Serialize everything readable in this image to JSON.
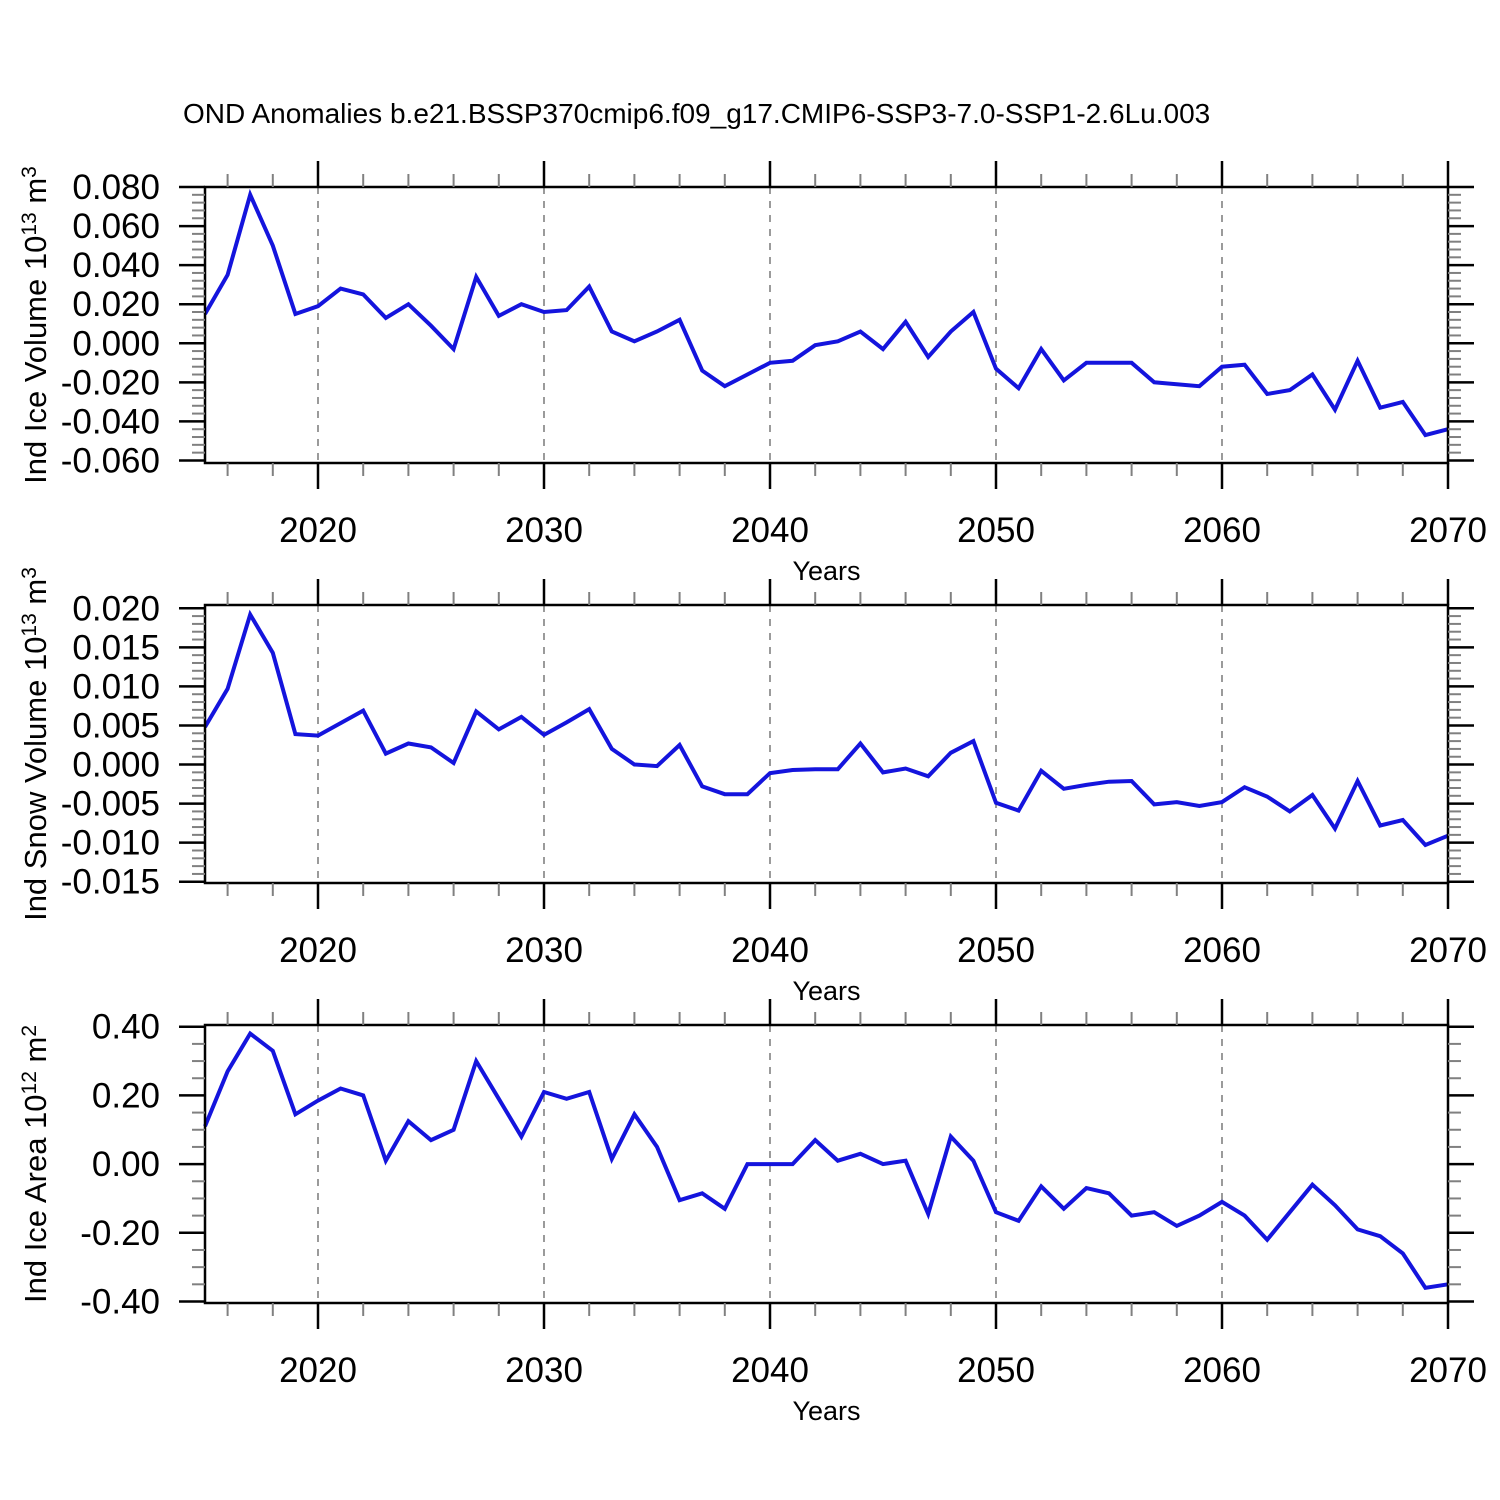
{
  "title": "OND Anomalies b.e21.BSSP370cmip6.f09_g17.CMIP6-SSP3-7.0-SSP1-2.6Lu.003",
  "line_color": "#1414dd",
  "grid_color": "#909090",
  "minor_tick_color": "#808080",
  "axis_color": "#000000",
  "chart_data": [
    {
      "type": "line",
      "name": "ice-volume",
      "ylabel": "Ind Ice Volume 10^13 m^3",
      "ylabel_parts": [
        "Ind Ice Volume 10",
        "13",
        " m",
        "3"
      ],
      "xlabel": "Years",
      "x_start": 2015,
      "x_end": 2070,
      "xticks": [
        2020,
        2030,
        2040,
        2050,
        2060,
        2070
      ],
      "x_minor_step": 2,
      "grid_decades": [
        2020,
        2030,
        2040,
        2050,
        2060
      ],
      "ytick_labels": [
        "0.080",
        "0.060",
        "0.040",
        "0.020",
        "0.000",
        "-0.020",
        "-0.040",
        "-0.060"
      ],
      "y_major_step": 0.02,
      "y_minor_step": 0.004,
      "ylim": [
        -0.0613,
        0.08
      ],
      "values": [
        0.015,
        0.035,
        0.076,
        0.05,
        0.015,
        0.019,
        0.028,
        0.025,
        0.013,
        0.02,
        0.009,
        -0.003,
        0.034,
        0.014,
        0.02,
        0.016,
        0.017,
        0.029,
        0.006,
        0.001,
        0.006,
        0.012,
        -0.014,
        -0.022,
        -0.016,
        -0.01,
        -0.009,
        -0.001,
        0.001,
        0.006,
        -0.003,
        0.011,
        -0.007,
        0.006,
        0.016,
        -0.013,
        -0.023,
        -0.003,
        -0.019,
        -0.01,
        -0.01,
        -0.01,
        -0.02,
        -0.021,
        -0.022,
        -0.012,
        -0.011,
        -0.026,
        -0.024,
        -0.016,
        -0.034,
        -0.009,
        -0.033,
        -0.03,
        -0.047,
        -0.044
      ]
    },
    {
      "type": "line",
      "name": "snow-volume",
      "ylabel": "Ind Snow Volume 10^13 m^3",
      "ylabel_parts": [
        "Ind Snow Volume 10",
        "13",
        " m",
        "3"
      ],
      "xlabel": "Years",
      "x_start": 2015,
      "x_end": 2070,
      "xticks": [
        2020,
        2030,
        2040,
        2050,
        2060,
        2070
      ],
      "x_minor_step": 2,
      "grid_decades": [
        2020,
        2030,
        2040,
        2050,
        2060
      ],
      "ytick_labels": [
        "0.020",
        "0.015",
        "0.010",
        "0.005",
        "0.000",
        "-0.005",
        "-0.010",
        "-0.015"
      ],
      "y_major_step": 0.005,
      "y_minor_step": 0.001,
      "ylim": [
        -0.01516,
        0.02042
      ],
      "values": [
        0.0048,
        0.0097,
        0.0192,
        0.0143,
        0.0039,
        0.0037,
        0.0053,
        0.0069,
        0.0014,
        0.0027,
        0.0022,
        0.0002,
        0.0068,
        0.0045,
        0.0061,
        0.0038,
        0.0054,
        0.0071,
        0.002,
        0.0,
        -0.0002,
        0.0025,
        -0.0028,
        -0.0038,
        -0.0038,
        -0.0011,
        -0.0007,
        -0.0006,
        -0.0006,
        0.0027,
        -0.001,
        -0.0005,
        -0.0015,
        0.0015,
        0.003,
        -0.0049,
        -0.0059,
        -0.0008,
        -0.0031,
        -0.0026,
        -0.0022,
        -0.0021,
        -0.0051,
        -0.0048,
        -0.0053,
        -0.0048,
        -0.0029,
        -0.0041,
        -0.006,
        -0.0039,
        -0.0082,
        -0.0021,
        -0.0078,
        -0.0071,
        -0.0103,
        -0.0091
      ]
    },
    {
      "type": "line",
      "name": "ice-area",
      "ylabel": "Ind Ice Area 10^12 m^2",
      "ylabel_parts": [
        "Ind Ice Area 10",
        "12",
        " m",
        "2"
      ],
      "xlabel": "Years",
      "x_start": 2015,
      "x_end": 2070,
      "xticks": [
        2020,
        2030,
        2040,
        2050,
        2060,
        2070
      ],
      "x_minor_step": 2,
      "grid_decades": [
        2020,
        2030,
        2040,
        2050,
        2060
      ],
      "ytick_labels": [
        "0.40",
        "0.20",
        "0.00",
        "-0.20",
        "-0.40"
      ],
      "y_major_step": 0.2,
      "y_minor_step": 0.05,
      "ylim": [
        -0.4044,
        0.405
      ],
      "values": [
        0.11,
        0.27,
        0.38,
        0.33,
        0.145,
        0.185,
        0.22,
        0.2,
        0.01,
        0.125,
        0.07,
        0.1,
        0.3,
        0.19,
        0.08,
        0.21,
        0.19,
        0.21,
        0.015,
        0.145,
        0.05,
        -0.105,
        -0.085,
        -0.13,
        0.0,
        0.0,
        0.0,
        0.07,
        0.01,
        0.03,
        0.0,
        0.01,
        -0.145,
        0.08,
        0.01,
        -0.14,
        -0.165,
        -0.065,
        -0.13,
        -0.07,
        -0.085,
        -0.15,
        -0.14,
        -0.18,
        -0.15,
        -0.11,
        -0.15,
        -0.22,
        -0.14,
        -0.06,
        -0.12,
        -0.19,
        -0.21,
        -0.26,
        -0.36,
        -0.35
      ]
    }
  ]
}
